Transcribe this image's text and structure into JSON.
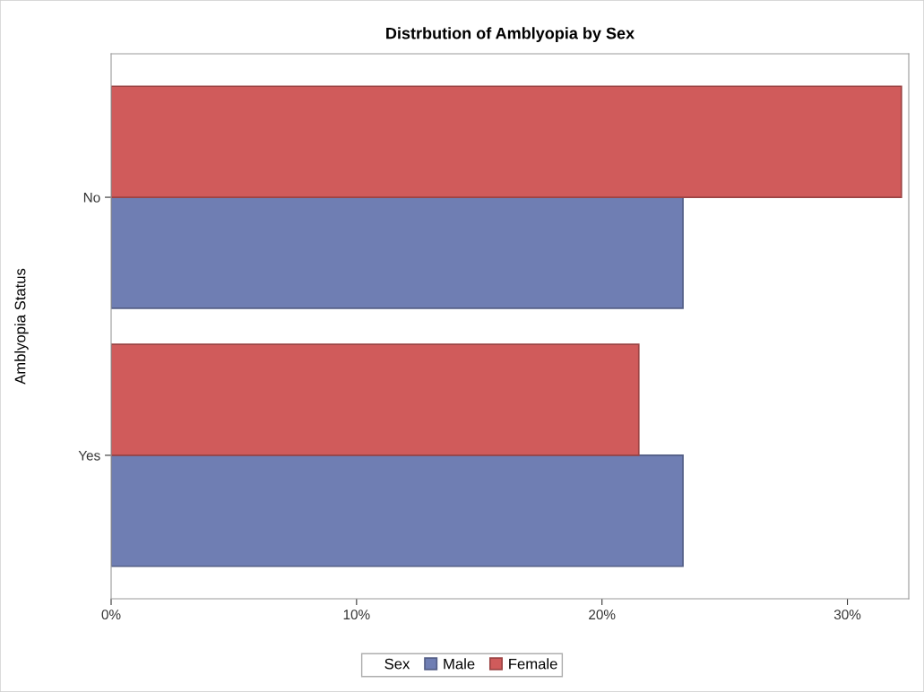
{
  "chart_data": {
    "type": "bar",
    "orientation": "horizontal",
    "title": "Distrbution of Amblyopia by Sex",
    "ylabel": "Amblyopia Status",
    "categories": [
      "No",
      "Yes"
    ],
    "series": [
      {
        "name": "Male",
        "color": "#6f7eb3",
        "values": [
          23.3,
          23.3
        ]
      },
      {
        "name": "Female",
        "color": "#d05b5b",
        "values": [
          32.2,
          21.5
        ]
      }
    ],
    "xlim": [
      0,
      32.5
    ],
    "xticks": [
      {
        "value": 0,
        "label": "0%"
      },
      {
        "value": 10,
        "label": "10%"
      },
      {
        "value": 20,
        "label": "20%"
      },
      {
        "value": 30,
        "label": "30%"
      }
    ],
    "legend": "bottom",
    "legend_title": "Sex",
    "grid": false
  }
}
